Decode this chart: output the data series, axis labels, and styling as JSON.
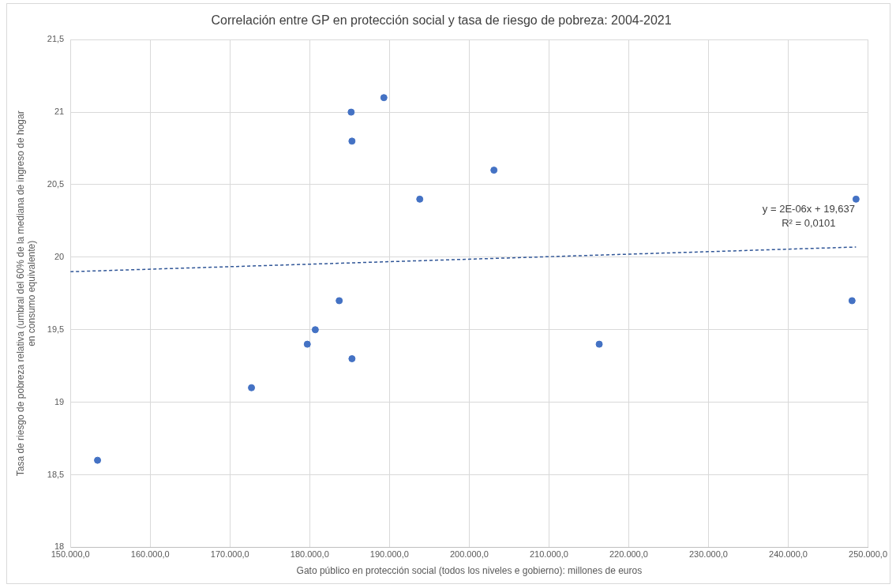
{
  "chart_data": {
    "type": "scatter",
    "title": "Correlación entre GP en protección social y tasa de riesgo de pobreza: 2004-2021",
    "xlabel": "Gato público en protección social (todos los niveles e gobierno): millones de euros",
    "ylabel": "Tasa de riesgo de pobreza relativa (umbral del 60% de la mediana de ingreso de hogar en consumo equivalente)",
    "series": [
      {
        "color": "#4472c4",
        "marker": "circle",
        "x": [
          153400,
          172700,
          179700,
          180700,
          183700,
          185200,
          185300,
          185300,
          189300,
          193800,
          203100,
          216300,
          248500,
          248000
        ],
        "values": [
          18.6,
          19.1,
          19.4,
          19.5,
          19.7,
          21.0,
          20.8,
          19.3,
          21.1,
          20.4,
          20.6,
          19.4,
          20.4,
          19.7
        ]
      },
      {
        "type": "line",
        "color": "#2f5597",
        "line_style": "dashed",
        "marker": "none",
        "x": [
          150000,
          248500
        ],
        "values": [
          19.9,
          20.07
        ]
      }
    ],
    "annotations": [
      "y = 2E-06x + 19,637",
      "R² = 0,0101"
    ],
    "grid": true,
    "legend": false,
    "xlim": [
      150000,
      250000
    ],
    "xticks": [
      {
        "value": 150000,
        "label": "150.000,0"
      },
      {
        "value": 160000,
        "label": "160.000,0"
      },
      {
        "value": 170000,
        "label": "170.000,0"
      },
      {
        "value": 180000,
        "label": "180.000,0"
      },
      {
        "value": 190000,
        "label": "190.000,0"
      },
      {
        "value": 200000,
        "label": "200.000,0"
      },
      {
        "value": 210000,
        "label": "210.000,0"
      },
      {
        "value": 220000,
        "label": "220.000,0"
      },
      {
        "value": 230000,
        "label": "230.000,0"
      },
      {
        "value": 240000,
        "label": "240.000,0"
      },
      {
        "value": 250000,
        "label": "250.000,0"
      }
    ],
    "ylim": [
      18,
      21.5
    ],
    "yticks": [
      18,
      {
        "value": 18.5,
        "label": "18,5"
      },
      19,
      {
        "value": 19.5,
        "label": "19,5"
      },
      20,
      {
        "value": 20.5,
        "label": "20,5"
      },
      21,
      {
        "value": 21.5,
        "label": "21,5"
      }
    ]
  }
}
